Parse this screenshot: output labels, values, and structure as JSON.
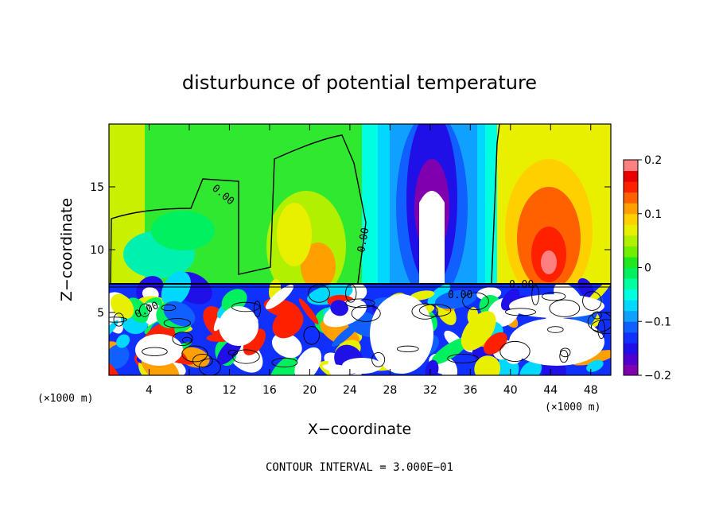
{
  "chart_data": {
    "type": "heatmap",
    "title": "disturbunce of potential temperature",
    "xlabel": "X−coordinate",
    "ylabel": "Z−coordinate",
    "x_unit": "(×1000 m)",
    "y_unit": "(×1000 m)",
    "xlim": [
      0,
      50
    ],
    "ylim": [
      0,
      20
    ],
    "x_ticks": [
      4,
      8,
      12,
      16,
      20,
      24,
      28,
      32,
      36,
      40,
      44,
      48
    ],
    "y_ticks": [
      5,
      10,
      15
    ],
    "colorbar": {
      "min": -0.2,
      "max": 0.2,
      "ticks": [
        0.2,
        0.1,
        0,
        -0.1,
        -0.2
      ],
      "tick_labels": [
        "0.2",
        "0.1",
        "0",
        "−0.1",
        "−0.2"
      ],
      "colors": [
        "#8000b0",
        "#5000d0",
        "#2010e8",
        "#1030ff",
        "#1060ff",
        "#10a0ff",
        "#00d8ff",
        "#00ffe0",
        "#00ffa0",
        "#00f060",
        "#20e820",
        "#70f000",
        "#b0f000",
        "#e8f000",
        "#ffd000",
        "#ffa000",
        "#ff6000",
        "#ff2000",
        "#e80000",
        "#ff8080"
      ]
    },
    "contour_label": "0.00",
    "footer": "CONTOUR INTERVAL = 3.000E−01"
  }
}
